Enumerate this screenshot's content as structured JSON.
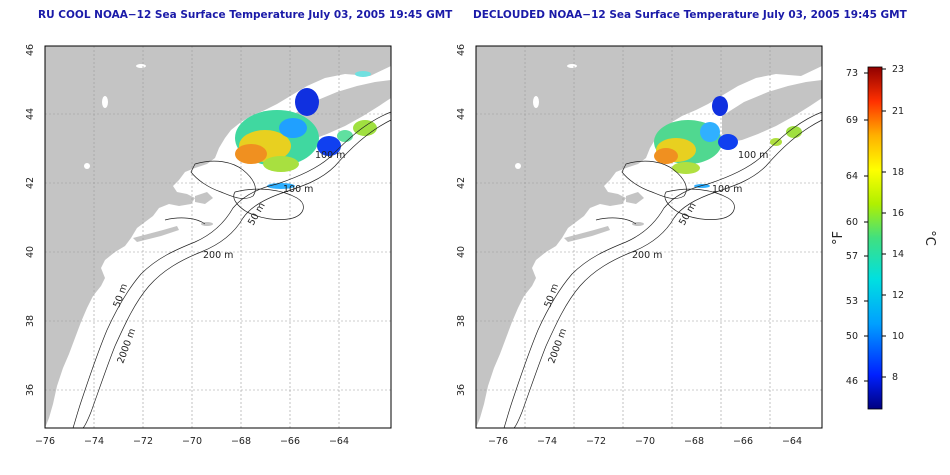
{
  "left_panel": {
    "title": "RU COOL NOAA−12 Sea Surface Temperature July 03, 2005 19:45 GMT",
    "contour_labels": [
      "100 m",
      "100 m",
      "50 m",
      "200 m",
      "50 m",
      "2000 m"
    ]
  },
  "right_panel": {
    "title": "DECLOUDED NOAA−12 Sea Surface Temperature July 03, 2005 19:45 GMT",
    "contour_labels": [
      "100 m",
      "100 m",
      "50 m",
      "200 m",
      "50 m",
      "2000 m"
    ]
  },
  "axes": {
    "lon_ticks": [
      "−76",
      "−74",
      "−72",
      "−70",
      "−68",
      "−66",
      "−64"
    ],
    "lat_ticks": [
      "36",
      "38",
      "40",
      "42",
      "44",
      "46"
    ]
  },
  "colorbar": {
    "f_label": "°F",
    "c_label": "°C",
    "f_ticks": [
      "73",
      "69",
      "64",
      "60",
      "57",
      "53",
      "50",
      "46"
    ],
    "c_ticks": [
      "23",
      "21",
      "18",
      "16",
      "14",
      "12",
      "10",
      "8"
    ]
  },
  "colors": {
    "land": "#c4c4c4",
    "title": "#1a1aa8",
    "grid": "#9a9a9a"
  }
}
